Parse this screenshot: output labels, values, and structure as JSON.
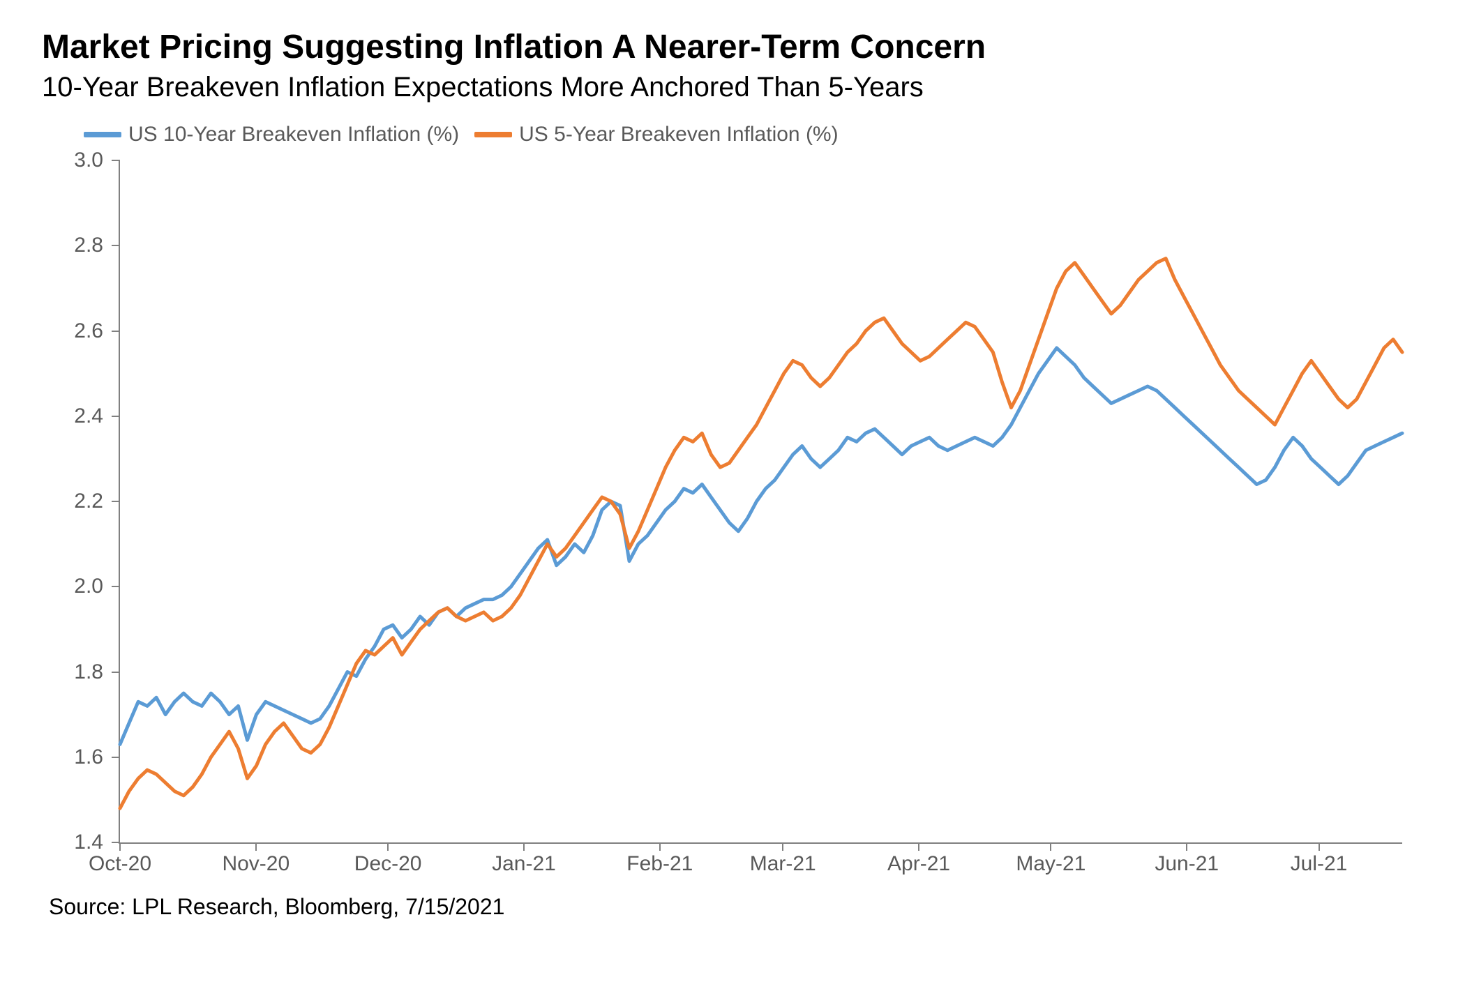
{
  "chart": {
    "type": "line",
    "title": "Market Pricing Suggesting Inflation A Nearer-Term Concern",
    "subtitle": "10-Year Breakeven Inflation Expectations More Anchored Than 5-Years",
    "title_fontsize": 48,
    "subtitle_fontsize": 40,
    "title_fontweight": 700,
    "subtitle_fontweight": 400,
    "background_color": "#ffffff",
    "axis_color": "#808080",
    "tick_label_color": "#595959",
    "tick_label_fontsize": 30,
    "line_width": 5,
    "ylim": [
      1.4,
      3.0
    ],
    "ytick_step": 0.2,
    "yticks": [
      1.4,
      1.6,
      1.8,
      2.0,
      2.2,
      2.4,
      2.6,
      2.8,
      3.0
    ],
    "x_labels": [
      "Oct-20",
      "Nov-20",
      "Dec-20",
      "Jan-21",
      "Feb-21",
      "Mar-21",
      "Apr-21",
      "May-21",
      "Jun-21",
      "Jul-21"
    ],
    "x_positions": [
      0.0,
      0.106,
      0.209,
      0.315,
      0.421,
      0.517,
      0.623,
      0.726,
      0.832,
      0.935
    ],
    "series": [
      {
        "name": "US 10-Year Breakeven Inflation (%)",
        "color": "#5b9bd5",
        "data": [
          1.63,
          1.68,
          1.73,
          1.72,
          1.74,
          1.7,
          1.73,
          1.75,
          1.73,
          1.72,
          1.75,
          1.73,
          1.7,
          1.72,
          1.64,
          1.7,
          1.73,
          1.72,
          1.71,
          1.7,
          1.69,
          1.68,
          1.69,
          1.72,
          1.76,
          1.8,
          1.79,
          1.83,
          1.86,
          1.9,
          1.91,
          1.88,
          1.9,
          1.93,
          1.91,
          1.94,
          1.95,
          1.93,
          1.95,
          1.96,
          1.97,
          1.97,
          1.98,
          2.0,
          2.03,
          2.06,
          2.09,
          2.11,
          2.05,
          2.07,
          2.1,
          2.08,
          2.12,
          2.18,
          2.2,
          2.19,
          2.06,
          2.1,
          2.12,
          2.15,
          2.18,
          2.2,
          2.23,
          2.22,
          2.24,
          2.21,
          2.18,
          2.15,
          2.13,
          2.16,
          2.2,
          2.23,
          2.25,
          2.28,
          2.31,
          2.33,
          2.3,
          2.28,
          2.3,
          2.32,
          2.35,
          2.34,
          2.36,
          2.37,
          2.35,
          2.33,
          2.31,
          2.33,
          2.34,
          2.35,
          2.33,
          2.32,
          2.33,
          2.34,
          2.35,
          2.34,
          2.33,
          2.35,
          2.38,
          2.42,
          2.46,
          2.5,
          2.53,
          2.56,
          2.54,
          2.52,
          2.49,
          2.47,
          2.45,
          2.43,
          2.44,
          2.45,
          2.46,
          2.47,
          2.46,
          2.44,
          2.42,
          2.4,
          2.38,
          2.36,
          2.34,
          2.32,
          2.3,
          2.28,
          2.26,
          2.24,
          2.25,
          2.28,
          2.32,
          2.35,
          2.33,
          2.3,
          2.28,
          2.26,
          2.24,
          2.26,
          2.29,
          2.32,
          2.33,
          2.34,
          2.35,
          2.36
        ]
      },
      {
        "name": "US 5-Year Breakeven Inflation (%)",
        "color": "#ed7d31",
        "data": [
          1.48,
          1.52,
          1.55,
          1.57,
          1.56,
          1.54,
          1.52,
          1.51,
          1.53,
          1.56,
          1.6,
          1.63,
          1.66,
          1.62,
          1.55,
          1.58,
          1.63,
          1.66,
          1.68,
          1.65,
          1.62,
          1.61,
          1.63,
          1.67,
          1.72,
          1.77,
          1.82,
          1.85,
          1.84,
          1.86,
          1.88,
          1.84,
          1.87,
          1.9,
          1.92,
          1.94,
          1.95,
          1.93,
          1.92,
          1.93,
          1.94,
          1.92,
          1.93,
          1.95,
          1.98,
          2.02,
          2.06,
          2.1,
          2.07,
          2.09,
          2.12,
          2.15,
          2.18,
          2.21,
          2.2,
          2.17,
          2.09,
          2.13,
          2.18,
          2.23,
          2.28,
          2.32,
          2.35,
          2.34,
          2.36,
          2.31,
          2.28,
          2.29,
          2.32,
          2.35,
          2.38,
          2.42,
          2.46,
          2.5,
          2.53,
          2.52,
          2.49,
          2.47,
          2.49,
          2.52,
          2.55,
          2.57,
          2.6,
          2.62,
          2.63,
          2.6,
          2.57,
          2.55,
          2.53,
          2.54,
          2.56,
          2.58,
          2.6,
          2.62,
          2.61,
          2.58,
          2.55,
          2.48,
          2.42,
          2.46,
          2.52,
          2.58,
          2.64,
          2.7,
          2.74,
          2.76,
          2.73,
          2.7,
          2.67,
          2.64,
          2.66,
          2.69,
          2.72,
          2.74,
          2.76,
          2.77,
          2.72,
          2.68,
          2.64,
          2.6,
          2.56,
          2.52,
          2.49,
          2.46,
          2.44,
          2.42,
          2.4,
          2.38,
          2.42,
          2.46,
          2.5,
          2.53,
          2.5,
          2.47,
          2.44,
          2.42,
          2.44,
          2.48,
          2.52,
          2.56,
          2.58,
          2.55
        ]
      }
    ],
    "source": "Source: LPL Research, Bloomberg, 7/15/2021",
    "source_fontsize": 32,
    "legend": {
      "swatch_width": 54,
      "swatch_height": 8,
      "fontsize": 30,
      "text_color": "#595959"
    }
  }
}
